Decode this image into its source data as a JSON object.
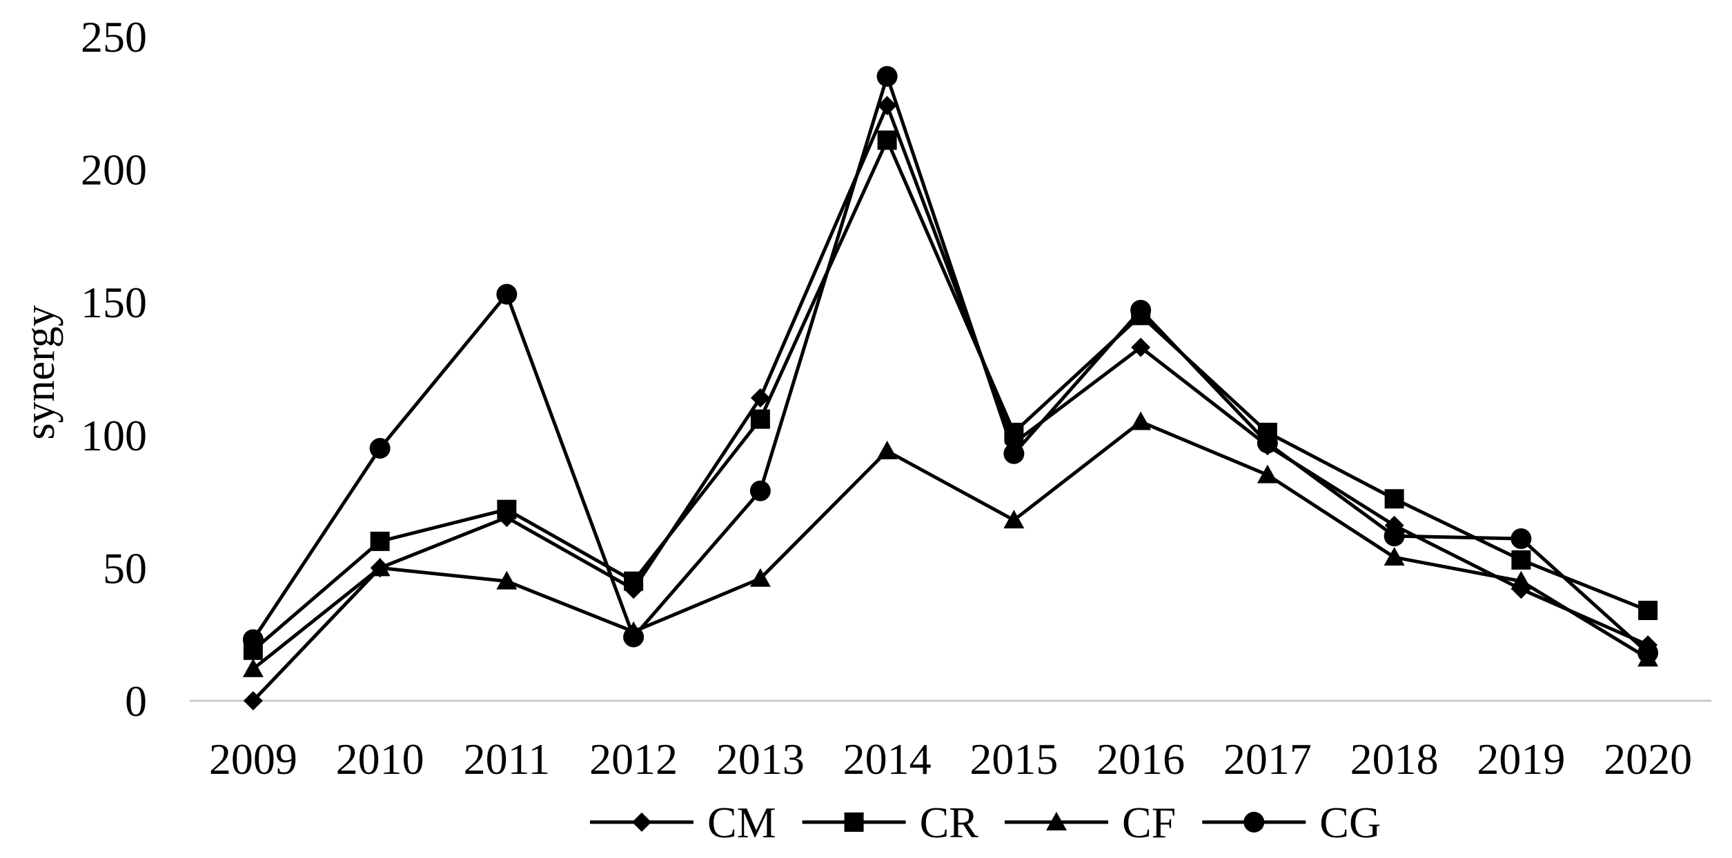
{
  "chart_data": {
    "type": "line",
    "title": "",
    "xlabel": "",
    "ylabel": "synergy",
    "x": [
      "2009",
      "2010",
      "2011",
      "2012",
      "2013",
      "2014",
      "2015",
      "2016",
      "2017",
      "2018",
      "2019",
      "2020"
    ],
    "ylim": [
      0,
      250
    ],
    "yticks": [
      "0",
      "50",
      "100",
      "150",
      "200",
      "250"
    ],
    "grid": false,
    "legend_position": "bottom",
    "series": [
      {
        "name": "CM",
        "marker": "diamond",
        "values": [
          0,
          50,
          69,
          42,
          114,
          224,
          97,
          133,
          96,
          66,
          42,
          21
        ]
      },
      {
        "name": "CR",
        "marker": "square",
        "values": [
          19,
          60,
          72,
          45,
          106,
          211,
          101,
          145,
          101,
          76,
          53,
          34
        ]
      },
      {
        "name": "CF",
        "marker": "triangle",
        "values": [
          12,
          50,
          45,
          26,
          46,
          94,
          68,
          105,
          85,
          54,
          45,
          16
        ]
      },
      {
        "name": "CG",
        "marker": "circle",
        "values": [
          23,
          95,
          153,
          24,
          79,
          235,
          93,
          147,
          97,
          62,
          61,
          18
        ]
      }
    ]
  }
}
